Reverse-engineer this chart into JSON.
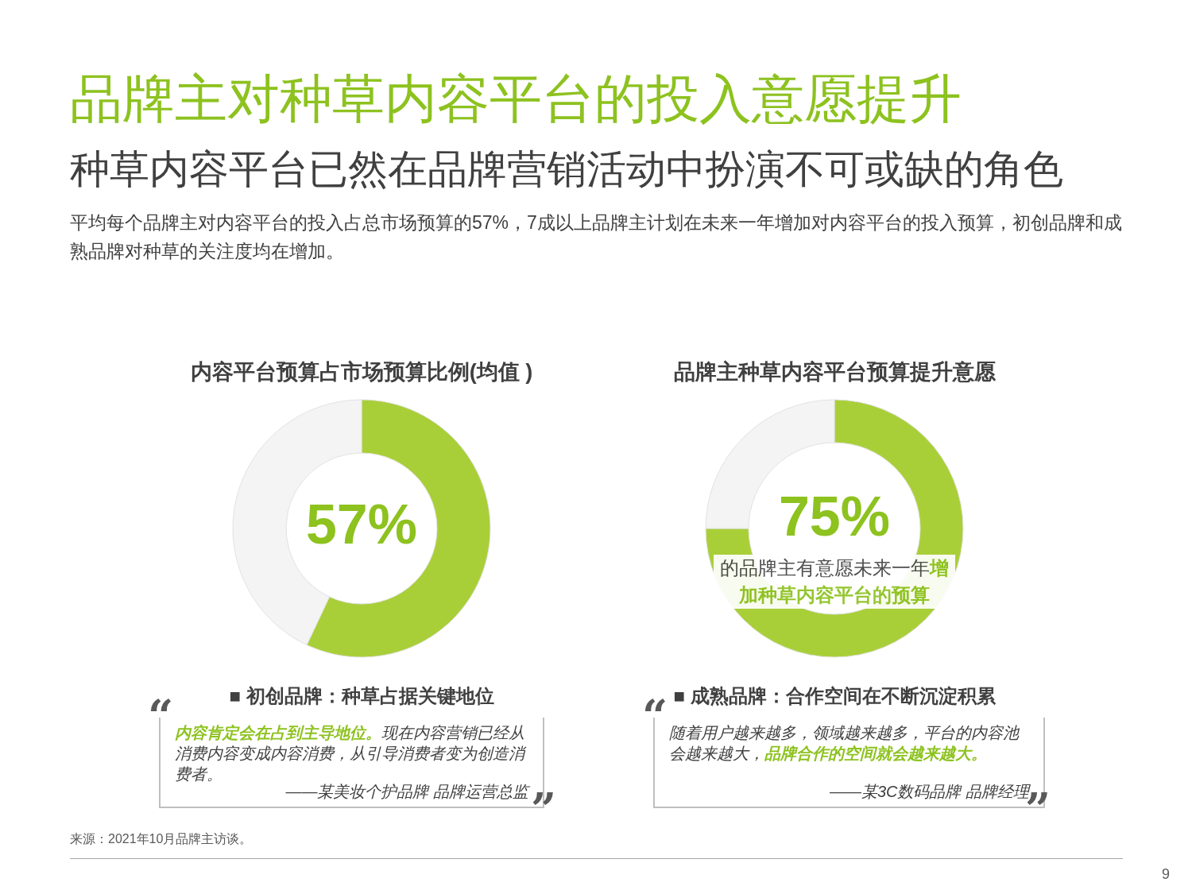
{
  "chart_data": [
    {
      "type": "other",
      "title": "品牌主对种草内容平台的投入意愿提升",
      "subtitle": "种草内容平台已然在品牌营销活动中扮演不可或缺的角色",
      "annotations": [
        "平均每个品牌主对内容平台的投入占总市场预算的57%，7成以上品牌主计划在未来一年增加对内容平台的投入预算，初创品牌和成熟品牌对种草的关注度均在增加。",
        "来源：2021年10月品牌主访谈。",
        "9"
      ]
    },
    {
      "type": "donut",
      "title": "内容平台预算占市场预算比例(均值 )",
      "categories": [
        null,
        null
      ],
      "values": [
        57,
        43
      ],
      "colors": [
        "#a9cf38",
        "#f4f4f4"
      ],
      "value_labels": [
        "57%",
        null
      ],
      "annotations": [
        "■ 初创品牌：种草占据关键地位",
        "内容肯定会在占到主导地位。",
        "现在内容营销已经从消费内容变成内容消费，从引导消费者变为创造消费者。",
        "——某美妆个护品牌  品牌运营总监",
        "“",
        "”"
      ]
    },
    {
      "type": "donut",
      "title": "品牌主种草内容平台预算提升意愿",
      "categories": [
        null,
        null
      ],
      "values": [
        75,
        25
      ],
      "colors": [
        "#a9cf38",
        "#f4f4f4"
      ],
      "value_labels": [
        "75%",
        null
      ],
      "annotations": [
        "的品牌主有意愿未来一年",
        "增加种草内容平台的预算",
        "■ 成熟品牌：合作空间在不断沉淀积累",
        "随着用户越来越多，领域越来越多，平台的内容池会越来越大，",
        "品牌合作的空间就会越来越大。",
        "——某3C数码品牌  品牌经理",
        "“",
        "”"
      ]
    }
  ]
}
